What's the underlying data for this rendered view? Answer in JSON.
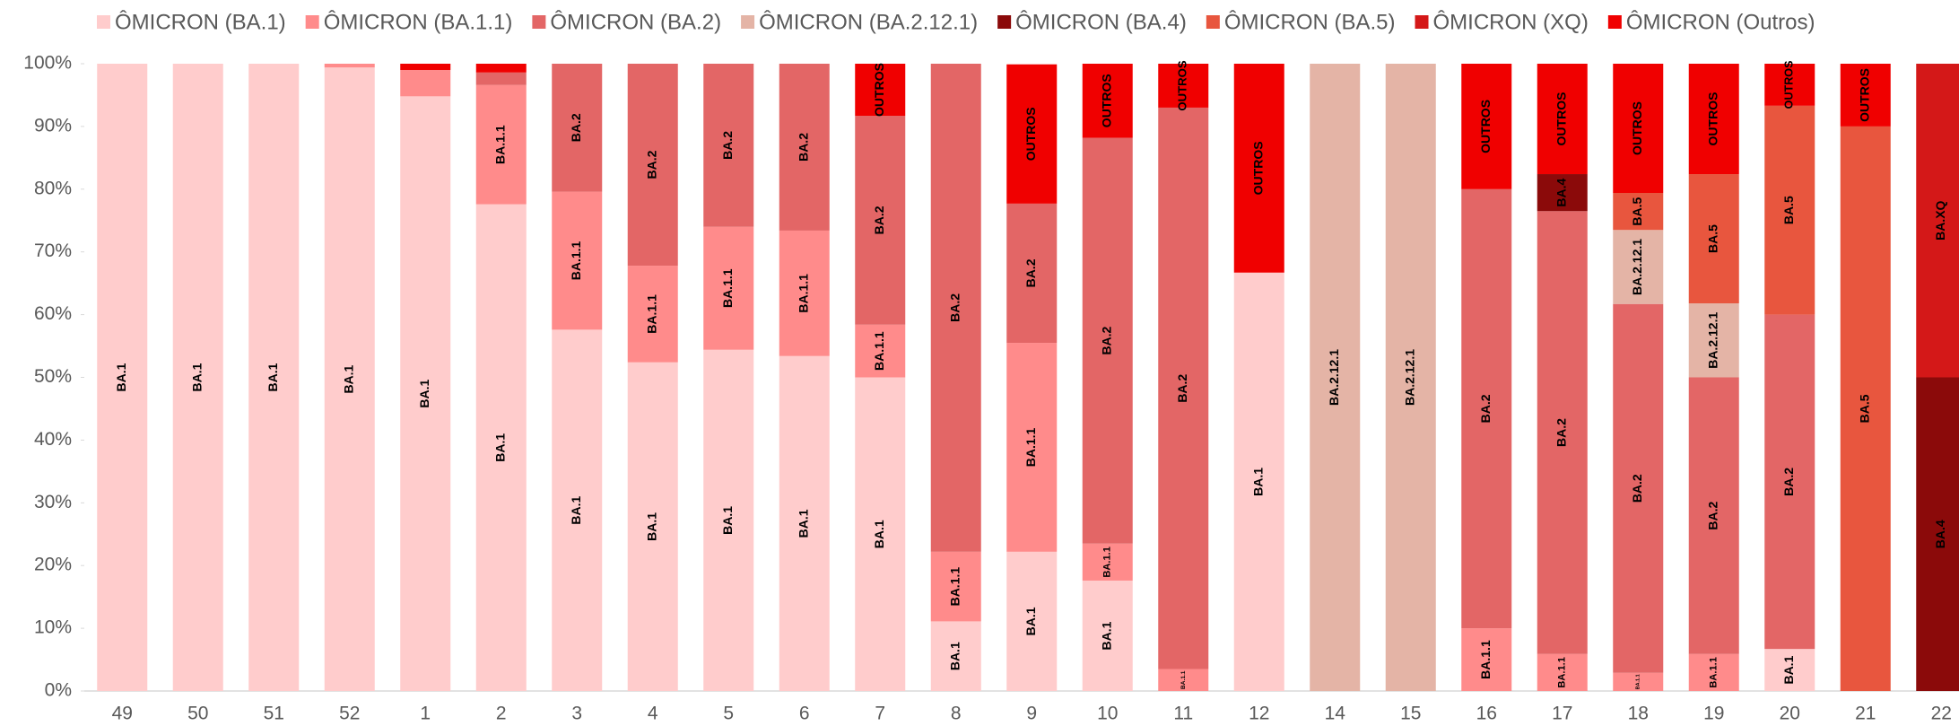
{
  "chart_data": {
    "type": "stacked_bar",
    "categories": [
      "49",
      "50",
      "51",
      "52",
      "1",
      "2",
      "3",
      "4",
      "5",
      "6",
      "7",
      "8",
      "9",
      "10",
      "11",
      "12",
      "14",
      "15",
      "16",
      "17",
      "18",
      "19",
      "20",
      "21",
      "22"
    ],
    "series": [
      {
        "name": "ÔMICRON (BA.1)",
        "color": "#ffcccc",
        "values": [
          100,
          100,
          100,
          99.4,
          94.8,
          77.6,
          57.6,
          52.4,
          54.4,
          53.4,
          50,
          11.1,
          22.2,
          17.6,
          null,
          66.7,
          null,
          null,
          null,
          null,
          null,
          null,
          6.7,
          null,
          null
        ],
        "value_labels": [
          "BA.1",
          "BA.1",
          "BA.1",
          "BA.1",
          "BA.1",
          "BA.1",
          "BA.1",
          "BA.1",
          "BA.1",
          "BA.1",
          "BA.1",
          "BA.1",
          "BA.1",
          "BA.1",
          null,
          "BA.1",
          null,
          null,
          null,
          null,
          null,
          null,
          "BA.1",
          null,
          null
        ]
      },
      {
        "name": "ÔMICRON (BA.1.1)",
        "color": "#ff8b8b",
        "values": [
          null,
          null,
          null,
          0.6,
          4.2,
          19,
          22,
          15.4,
          19.6,
          20,
          8.4,
          11.1,
          33.3,
          5.9,
          3.5,
          null,
          null,
          null,
          10,
          5.9,
          2.9,
          5.9,
          null,
          null,
          null
        ],
        "value_labels": [
          null,
          null,
          null,
          null,
          null,
          "BA.1.1",
          "BA.1.1",
          "BA.1.1",
          "BA.1.1",
          "BA.1.1",
          "BA.1.1",
          "BA.1.1",
          "BA.1.1",
          "BA.1.1",
          "BA.1.1",
          null,
          null,
          null,
          "BA.1.1",
          "BA.1.1",
          "BA.1.1",
          "BA.1.1",
          null,
          null,
          null
        ]
      },
      {
        "name": "ÔMICRON (BA.2)",
        "color": "#e36666",
        "values": [
          null,
          null,
          null,
          null,
          null,
          2,
          20.4,
          32.2,
          26,
          26.6,
          33.3,
          77.8,
          22.2,
          64.7,
          89.5,
          null,
          null,
          null,
          70,
          70.6,
          58.8,
          44.1,
          53.3,
          null,
          null
        ],
        "value_labels": [
          null,
          null,
          null,
          null,
          null,
          null,
          "BA.2",
          "BA.2",
          "BA.2",
          "BA.2",
          "BA.2",
          "BA.2",
          "BA.2",
          "BA.2",
          "BA.2",
          null,
          null,
          null,
          "BA.2",
          "BA.2",
          "BA.2",
          "BA.2",
          "BA.2",
          null,
          null
        ]
      },
      {
        "name": "ÔMICRON (BA.2.12.1)",
        "color": "#e4b4a6",
        "values": [
          null,
          null,
          null,
          null,
          null,
          null,
          null,
          null,
          null,
          null,
          null,
          null,
          null,
          null,
          null,
          null,
          100,
          100,
          null,
          null,
          11.8,
          11.8,
          null,
          null,
          null
        ],
        "value_labels": [
          null,
          null,
          null,
          null,
          null,
          null,
          null,
          null,
          null,
          null,
          null,
          null,
          null,
          null,
          null,
          null,
          "BA.2.12.1",
          "BA.2.12.1",
          null,
          null,
          "BA.2.12.1",
          "BA.2.12.1",
          null,
          null,
          null
        ]
      },
      {
        "name": "ÔMICRON (BA.4)",
        "color": "#8b0a0a",
        "values": [
          null,
          null,
          null,
          null,
          null,
          null,
          null,
          null,
          null,
          null,
          null,
          null,
          null,
          null,
          null,
          null,
          null,
          null,
          null,
          5.9,
          null,
          null,
          null,
          null,
          50
        ],
        "value_labels": [
          null,
          null,
          null,
          null,
          null,
          null,
          null,
          null,
          null,
          null,
          null,
          null,
          null,
          null,
          null,
          null,
          null,
          null,
          null,
          "BA.4",
          null,
          null,
          null,
          null,
          "BA.4"
        ]
      },
      {
        "name": "ÔMICRON (BA.5)",
        "color": "#e8563e",
        "values": [
          null,
          null,
          null,
          null,
          null,
          null,
          null,
          null,
          null,
          null,
          null,
          null,
          null,
          null,
          null,
          null,
          null,
          null,
          null,
          null,
          5.9,
          20.6,
          33.3,
          90,
          null
        ],
        "value_labels": [
          null,
          null,
          null,
          null,
          null,
          null,
          null,
          null,
          null,
          null,
          null,
          null,
          null,
          null,
          null,
          null,
          null,
          null,
          null,
          null,
          "BA.5",
          "BA.5",
          "BA.5",
          "BA.5",
          null
        ]
      },
      {
        "name": "ÔMICRON (XQ)",
        "color": "#d41818",
        "values": [
          null,
          null,
          null,
          null,
          null,
          null,
          null,
          null,
          null,
          null,
          null,
          null,
          null,
          null,
          null,
          null,
          null,
          null,
          null,
          null,
          null,
          null,
          null,
          null,
          50
        ],
        "value_labels": [
          null,
          null,
          null,
          null,
          null,
          null,
          null,
          null,
          null,
          null,
          null,
          null,
          null,
          null,
          null,
          null,
          null,
          null,
          null,
          null,
          null,
          null,
          null,
          null,
          "BA.XQ"
        ]
      },
      {
        "name": "ÔMICRON (Outros)",
        "color": "#f00000",
        "values": [
          null,
          null,
          null,
          null,
          1,
          1.4,
          null,
          null,
          null,
          null,
          8.3,
          null,
          22.2,
          11.8,
          7,
          33.3,
          null,
          null,
          20,
          17.6,
          20.6,
          17.6,
          6.7,
          10,
          null
        ],
        "value_labels": [
          null,
          null,
          null,
          null,
          null,
          null,
          null,
          null,
          null,
          null,
          "OUTROS",
          null,
          "OUTROS",
          "OUTROS",
          "OUTROS",
          "OUTROS",
          null,
          null,
          "OUTROS",
          "OUTROS",
          "OUTROS",
          "OUTROS",
          "OUTROS",
          "OUTROS",
          null
        ]
      }
    ],
    "ylim": [
      0,
      100
    ],
    "yticks": [
      {
        "value": 0,
        "label": "0%"
      },
      {
        "value": 10,
        "label": "10%"
      },
      {
        "value": 20,
        "label": "20%"
      },
      {
        "value": 30,
        "label": "30%"
      },
      {
        "value": 40,
        "label": "40%"
      },
      {
        "value": 50,
        "label": "50%"
      },
      {
        "value": 60,
        "label": "60%"
      },
      {
        "value": 70,
        "label": "70%"
      },
      {
        "value": 80,
        "label": "80%"
      },
      {
        "value": 90,
        "label": "90%"
      },
      {
        "value": 100,
        "label": "100%"
      }
    ],
    "grid": false,
    "legend": "top"
  }
}
